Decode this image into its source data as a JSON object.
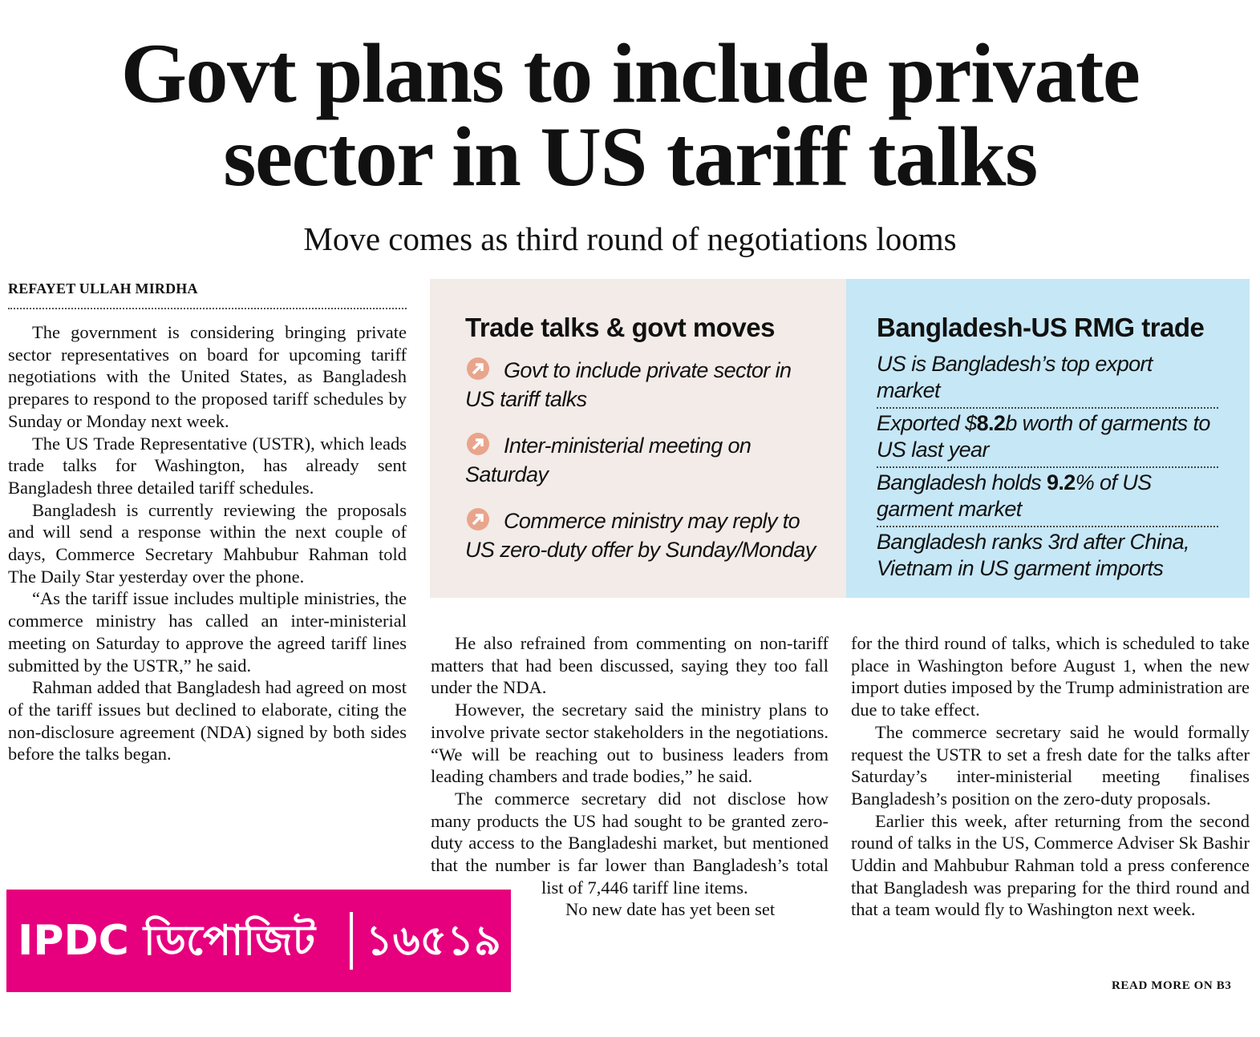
{
  "headline": {
    "lines": [
      "Govt plans to include private",
      "sector in US tariff talks"
    ]
  },
  "subheadline": "Move comes as third round of negotiations looms",
  "byline": "REFAYET ULLAH MIRDHA",
  "column1": {
    "paragraphs": [
      "The government is considering bringing private sector representatives on board for upcoming tariff negotiations with the United States, as Bangladesh prepares to respond to the proposed tariff schedules by Sunday or Monday next week.",
      "The US Trade Representative (USTR), which leads trade talks for Washington, has already sent Bangladesh three detailed tariff schedules.",
      "Bangladesh is currently reviewing the proposals and will send a response within the next couple of days, Commerce Secretary Mahbubur Rahman told The Daily Star yesterday over the phone.",
      "“As the tariff issue includes multiple ministries, the commerce ministry has called an inter-ministerial meeting on Saturday to approve the agreed tariff lines submitted by the USTR,” he said.",
      "Rahman added that Bangladesh had agreed on most of the tariff issues but declined to elaborate, citing the non-disclosure agreement (NDA) signed by both sides before the talks began."
    ]
  },
  "factbox_trade": {
    "title": "Trade talks & govt moves",
    "items": [
      "Govt to include private sector in US tariff talks",
      "Inter-ministerial meeting on Saturday",
      "Commerce ministry may reply to US zero-duty offer by Sunday/Monday"
    ]
  },
  "factbox_rmg": {
    "title": "Bangladesh-US RMG trade",
    "items": [
      {
        "text": "US is Bangladesh’s top export market"
      },
      {
        "before": "Exported $",
        "bold": "8.2",
        "after": "b worth of garments to US last year"
      },
      {
        "before": "Bangladesh holds ",
        "bold": "9.2",
        "after": "% of US garment market"
      },
      {
        "text": "Bangladesh ranks 3rd after China, Vietnam in US garment imports"
      }
    ]
  },
  "column2": {
    "paragraphs": [
      "He also refrained from commenting on non-tariff matters that had been discussed, saying they too fall under the NDA.",
      "However, the secretary said the ministry plans to involve private sector stakeholders in the negotiations. “We will be reaching out to business leaders from leading chambers and trade bodies,” he said.",
      "The commerce secretary did not disclose how many products the US had sought to be granted zero-duty access to the Bangladeshi market, but mentioned that the number is far lower than Bangladesh’s total list of 7,446 tariff line items.",
      "No new date has yet been set"
    ]
  },
  "column3": {
    "paragraphs": [
      "for the third round of talks, which is scheduled to take place in Washington before August 1, when the new import duties imposed by the Trump administration are due to take effect.",
      "The commerce secretary said he would formally request the USTR to set a fresh date for the talks after Saturday’s inter-ministerial meeting finalises Bangladesh’s position on the zero-duty proposals.",
      "Earlier this week, after returning from the second round of talks in the US, Commerce Adviser Sk Bashir Uddin and Mahbubur Rahman told a press conference that Bangladesh was preparing for the third round and that a team would fly to Washington next week."
    ]
  },
  "advert": {
    "brand": "IPDC ডিপোজিট",
    "hotline": "১৬৫১৯"
  },
  "read_more": "READ MORE ON B3"
}
